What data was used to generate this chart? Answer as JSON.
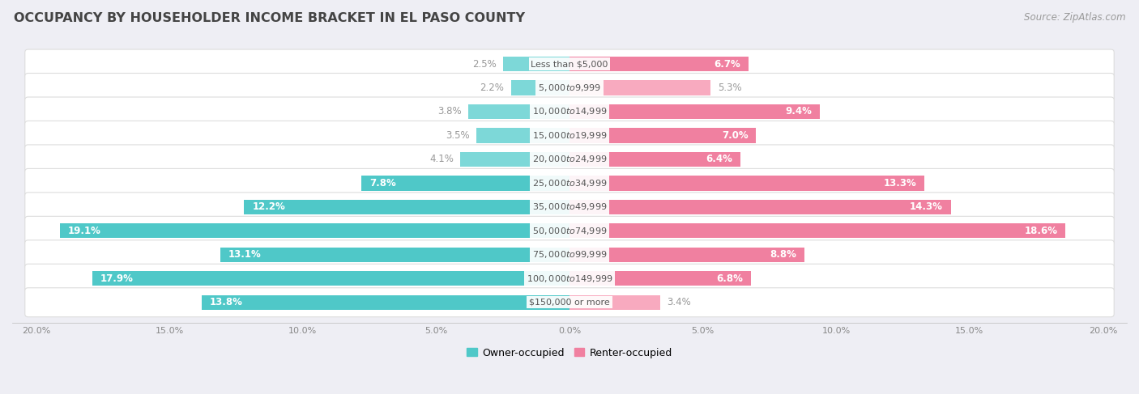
{
  "title": "OCCUPANCY BY HOUSEHOLDER INCOME BRACKET IN EL PASO COUNTY",
  "source": "Source: ZipAtlas.com",
  "categories": [
    "Less than $5,000",
    "$5,000 to $9,999",
    "$10,000 to $14,999",
    "$15,000 to $19,999",
    "$20,000 to $24,999",
    "$25,000 to $34,999",
    "$35,000 to $49,999",
    "$50,000 to $74,999",
    "$75,000 to $99,999",
    "$100,000 to $149,999",
    "$150,000 or more"
  ],
  "owner_values": [
    2.5,
    2.2,
    3.8,
    3.5,
    4.1,
    7.8,
    12.2,
    19.1,
    13.1,
    17.9,
    13.8
  ],
  "renter_values": [
    6.7,
    5.3,
    9.4,
    7.0,
    6.4,
    13.3,
    14.3,
    18.6,
    8.8,
    6.8,
    3.4
  ],
  "owner_color": "#4FC8C8",
  "renter_color": "#F080A0",
  "owner_color_light": "#7DD8D8",
  "renter_color_light": "#F8AABF",
  "label_color_inside": "#FFFFFF",
  "label_color_outside": "#999999",
  "background_color": "#EEEEF4",
  "bar_background": "#FFFFFF",
  "axis_max": 20.0,
  "title_fontsize": 11.5,
  "source_fontsize": 8.5,
  "bar_label_fontsize": 8.5,
  "category_fontsize": 8,
  "legend_fontsize": 9,
  "bar_height": 0.62,
  "inside_label_threshold": 6.0
}
